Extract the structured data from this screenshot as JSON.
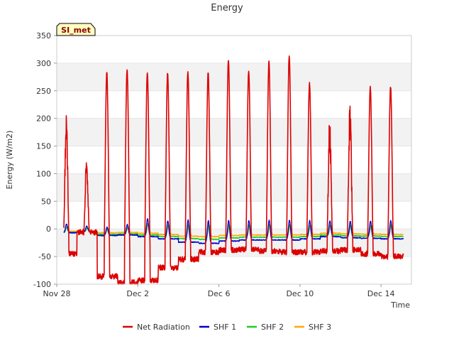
{
  "chart_data": {
    "type": "line",
    "title": "Energy",
    "xlabel": "Time",
    "ylabel": "Energy (W/m2)",
    "site_tag": "SI_met",
    "xlim": [
      0,
      17.5
    ],
    "ylim": [
      -100,
      350
    ],
    "y_ticks": [
      -100,
      -50,
      0,
      50,
      100,
      150,
      200,
      250,
      300,
      350
    ],
    "x_ticks": [
      {
        "value": 0,
        "label": "Nov 28"
      },
      {
        "value": 4,
        "label": "Dec 2"
      },
      {
        "value": 8,
        "label": "Dec 6"
      },
      {
        "value": 12,
        "label": "Dec 10"
      },
      {
        "value": 16,
        "label": "Dec 14"
      }
    ],
    "time_range_days": [
      0.35,
      17.1
    ],
    "day_peaks": [
      {
        "day": 0,
        "net_peak": 195,
        "net_night": -45,
        "shf1_peak": 9,
        "shf1_night": -7
      },
      {
        "day": 1,
        "net_peak": 118,
        "net_night": -6,
        "shf1_peak": 5,
        "shf1_night": -5
      },
      {
        "day": 2,
        "net_peak": 283,
        "net_night": -86,
        "shf1_peak": 3,
        "shf1_night": -12
      },
      {
        "day": 3,
        "net_peak": 288,
        "net_night": -97,
        "shf1_peak": 8,
        "shf1_night": -11
      },
      {
        "day": 4,
        "net_peak": 284,
        "net_night": -93,
        "shf1_peak": 19,
        "shf1_night": -14
      },
      {
        "day": 5,
        "net_peak": 282,
        "net_night": -70,
        "shf1_peak": 15,
        "shf1_night": -18
      },
      {
        "day": 6,
        "net_peak": 283,
        "net_night": -55,
        "shf1_peak": 16,
        "shf1_night": -24
      },
      {
        "day": 7,
        "net_peak": 282,
        "net_night": -42,
        "shf1_peak": 15,
        "shf1_night": -26
      },
      {
        "day": 8,
        "net_peak": 307,
        "net_night": -38,
        "shf1_peak": 15,
        "shf1_night": -22
      },
      {
        "day": 9,
        "net_peak": 285,
        "net_night": -37,
        "shf1_peak": 15,
        "shf1_night": -20
      },
      {
        "day": 10,
        "net_peak": 302,
        "net_night": -40,
        "shf1_peak": 16,
        "shf1_night": -20
      },
      {
        "day": 11,
        "net_peak": 313,
        "net_night": -42,
        "shf1_peak": 16,
        "shf1_night": -20
      },
      {
        "day": 12,
        "net_peak": 264,
        "net_night": -42,
        "shf1_peak": 15,
        "shf1_night": -18
      },
      {
        "day": 13,
        "net_peak": 188,
        "net_night": -40,
        "shf1_peak": 14,
        "shf1_night": -14
      },
      {
        "day": 14,
        "net_peak": 212,
        "net_night": -38,
        "shf1_peak": 14,
        "shf1_night": -16
      },
      {
        "day": 15,
        "net_peak": 256,
        "net_night": -45,
        "shf1_peak": 14,
        "shf1_night": -17
      },
      {
        "day": 16,
        "net_peak": 258,
        "net_night": -50,
        "shf1_peak": 15,
        "shf1_night": -18
      }
    ],
    "series": [
      {
        "name": "Net Radiation",
        "color": "#dd0000",
        "key": "net"
      },
      {
        "name": "SHF 1",
        "color": "#0000cc",
        "key": "shf1"
      },
      {
        "name": "SHF 2",
        "color": "#22cc22",
        "key": "shf2"
      },
      {
        "name": "SHF 3",
        "color": "#ffaa00",
        "key": "shf3"
      }
    ],
    "legend_position": "bottom-center",
    "grid": "horizontal bands"
  }
}
